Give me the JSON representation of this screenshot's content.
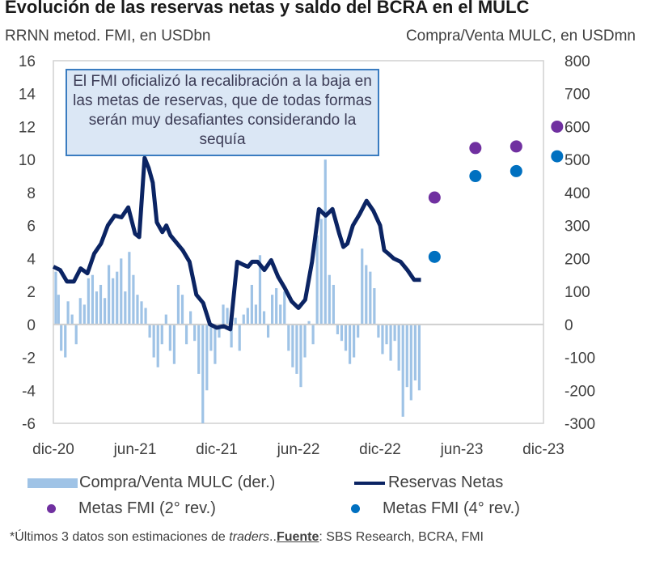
{
  "chart_data": {
    "type": "line",
    "title": "Evolución de las reservas netas y saldo del BCRA en el MULC",
    "left_axis_label": "RRNN metod. FMI, en USDbn",
    "right_axis_label": "Compra/Venta MULC, en USDmn",
    "left_ylim": [
      -6,
      16
    ],
    "left_ticks": [
      "16",
      "14",
      "12",
      "10",
      "8",
      "6",
      "4",
      "2",
      "0",
      "-2",
      "-4",
      "-6"
    ],
    "right_ylim": [
      -300,
      800
    ],
    "right_ticks": [
      "800",
      "700",
      "600",
      "500",
      "400",
      "300",
      "200",
      "100",
      "0",
      "-100",
      "-200",
      "-300"
    ],
    "x_ticks": [
      "dic-20",
      "jun-21",
      "dic-21",
      "jun-22",
      "dic-22",
      "jun-23",
      "dic-23"
    ],
    "x_range_months": [
      0,
      36
    ],
    "grid": false,
    "annotation": "El FMI oficializó la recalibración a la baja en las metas de reservas, que de todas formas serán muy desafiantes considerando la sequía",
    "series": [
      {
        "name": "Reservas Netas",
        "axis": "left",
        "color": "#0b2463",
        "x_months": [
          0,
          0.5,
          1,
          1.5,
          2,
          2.5,
          3,
          3.5,
          4,
          4.5,
          5,
          5.5,
          6,
          6.3,
          6.7,
          7,
          7.3,
          7.6,
          8,
          8.3,
          8.6,
          9,
          9.5,
          10,
          10.5,
          11,
          11.5,
          12,
          12.5,
          13,
          13.5,
          14,
          14.3,
          14.6,
          15,
          15.5,
          16,
          16.5,
          17,
          17.5,
          18,
          18.5,
          19,
          19.5,
          20,
          20.5,
          21,
          21.3,
          21.6,
          22,
          22.5,
          23,
          23.5,
          24,
          24.3,
          24.6,
          25,
          25.5,
          26,
          26.5,
          27
        ],
        "values": [
          3.5,
          3.3,
          2.6,
          2.6,
          3.4,
          3.1,
          4.3,
          4.9,
          6.0,
          6.6,
          6.5,
          7.1,
          5.5,
          5.3,
          10.1,
          9.5,
          8.6,
          6.2,
          5.6,
          6.0,
          5.4,
          5.0,
          4.5,
          3.8,
          1.8,
          1.3,
          0.0,
          -0.2,
          -0.1,
          -0.3,
          3.8,
          3.6,
          3.5,
          3.8,
          3.8,
          3.3,
          3.9,
          2.9,
          2.2,
          1.4,
          1.0,
          1.5,
          3.8,
          7.0,
          6.6,
          7.0,
          5.5,
          4.7,
          4.9,
          6.0,
          6.7,
          7.5,
          6.9,
          6.0,
          4.5,
          4.3,
          4.0,
          3.8,
          3.3,
          2.7,
          2.7
        ],
        "note": "values estimated from plotted line"
      },
      {
        "name": "Compra/Venta MULC (der.)",
        "axis": "right",
        "type": "bar",
        "color": "#9fc3e6",
        "x_months": [
          0.2,
          0.4,
          0.6,
          0.9,
          1.1,
          1.4,
          1.7,
          2.0,
          2.3,
          2.6,
          2.9,
          3.2,
          3.5,
          3.8,
          4.1,
          4.4,
          4.7,
          5.0,
          5.3,
          5.6,
          5.9,
          6.2,
          6.5,
          6.8,
          7.1,
          7.4,
          7.7,
          8.0,
          8.3,
          8.6,
          8.9,
          9.2,
          9.5,
          9.8,
          10.1,
          10.4,
          10.7,
          11.0,
          11.3,
          11.6,
          11.9,
          12.2,
          12.5,
          12.8,
          13.1,
          13.4,
          13.7,
          14.0,
          14.3,
          14.6,
          14.9,
          15.2,
          15.5,
          15.8,
          16.1,
          16.4,
          16.7,
          17.0,
          17.3,
          17.6,
          17.9,
          18.2,
          18.5,
          18.8,
          19.1,
          19.4,
          19.7,
          20.0,
          20.3,
          20.6,
          20.9,
          21.2,
          21.5,
          21.8,
          22.1,
          22.4,
          22.7,
          23.0,
          23.3,
          23.6,
          23.9,
          24.2,
          24.5,
          24.8,
          25.1,
          25.4,
          25.7,
          26.0,
          26.3,
          26.6,
          26.9
        ],
        "values": [
          160,
          90,
          -80,
          -100,
          70,
          30,
          -60,
          80,
          60,
          140,
          150,
          100,
          120,
          80,
          180,
          140,
          160,
          200,
          100,
          220,
          150,
          90,
          70,
          50,
          -40,
          -100,
          -130,
          -60,
          30,
          -80,
          -120,
          120,
          90,
          -60,
          40,
          -50,
          -150,
          -300,
          -200,
          -80,
          -120,
          -40,
          60,
          50,
          -70,
          20,
          -80,
          30,
          50,
          120,
          60,
          210,
          40,
          -40,
          90,
          110,
          60,
          100,
          -80,
          -130,
          -150,
          -190,
          -100,
          10,
          -60,
          270,
          320,
          500,
          150,
          120,
          -30,
          -50,
          -80,
          -120,
          -100,
          -40,
          230,
          180,
          160,
          110,
          -40,
          -90,
          -60,
          -110,
          -50,
          -140,
          -280,
          -190,
          -230,
          -170,
          -200
        ]
      },
      {
        "name": "Metas FMI (2° rev.)",
        "axis": "left",
        "type": "scatter",
        "color": "#7030a0",
        "x_months": [
          28,
          31,
          34,
          37
        ],
        "values": [
          7.7,
          10.7,
          10.8,
          12.0
        ]
      },
      {
        "name": "Metas FMI (4° rev.)",
        "axis": "left",
        "type": "scatter",
        "color": "#0070c0",
        "x_months": [
          28,
          31,
          34,
          37
        ],
        "values": [
          4.1,
          9.0,
          9.3,
          10.2
        ]
      }
    ],
    "legend": [
      {
        "label": "Compra/Venta MULC (der.)",
        "kind": "bar",
        "color": "#9fc3e6"
      },
      {
        "label": "Reservas Netas",
        "kind": "line",
        "color": "#0b2463"
      },
      {
        "label": "Metas FMI (2° rev.)",
        "kind": "dot",
        "color": "#7030a0"
      },
      {
        "label": "Metas FMI (4° rev.)",
        "kind": "dot",
        "color": "#0070c0"
      }
    ],
    "legend_position": "bottom"
  },
  "footnote": {
    "prefix": "*Últimos 3 datos son estimaciones de ",
    "italic": "traders",
    "mid": "..",
    "source_label": "Fuente",
    "source_text": ": SBS Research, BCRA, FMI"
  }
}
